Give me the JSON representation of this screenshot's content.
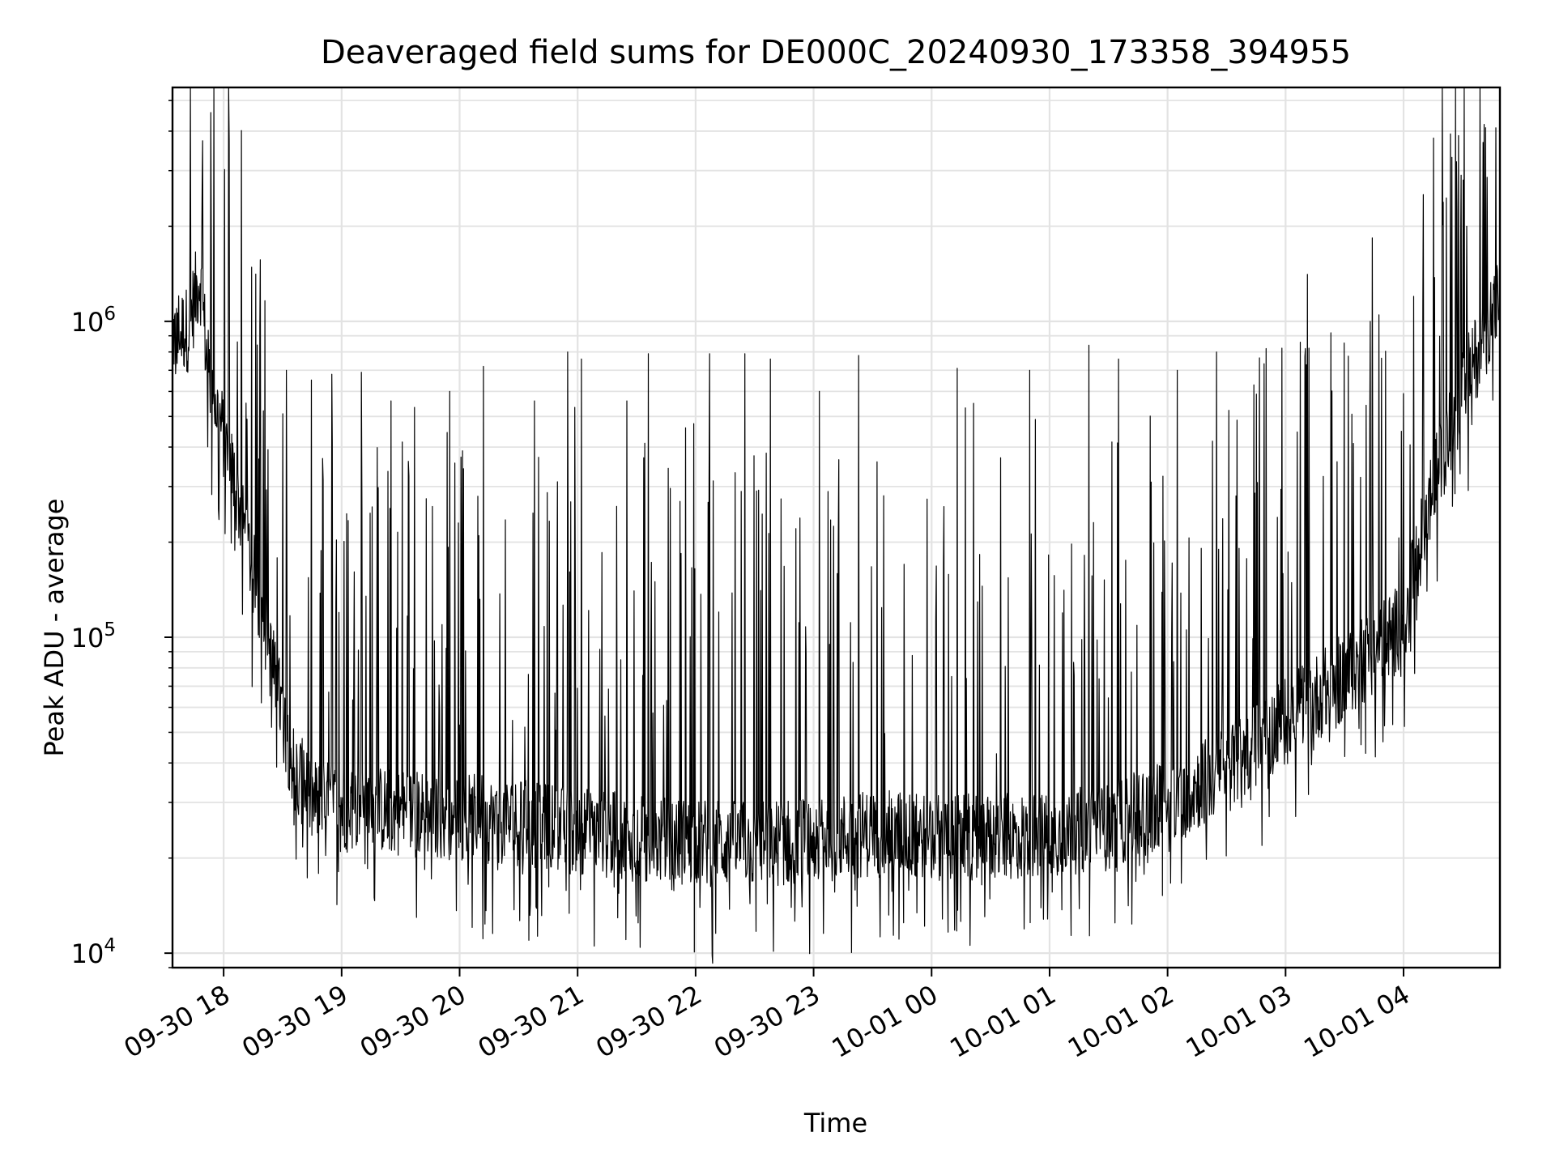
{
  "chart_data": {
    "type": "line",
    "title": "Deaveraged field sums for DE000C_20240930_173358_394955",
    "xlabel": "Time",
    "ylabel": "Peak ADU - average",
    "yscale": "log",
    "ylim": [
      9000,
      5500000
    ],
    "xlim": [
      "2024-09-30 17:34",
      "2024-10-01 04:49"
    ],
    "grid": true,
    "legend": "none",
    "line_color": "#000000",
    "x_ticks": [
      {
        "t": "2024-09-30 18:00",
        "label": "09-30 18"
      },
      {
        "t": "2024-09-30 19:00",
        "label": "09-30 19"
      },
      {
        "t": "2024-09-30 20:00",
        "label": "09-30 20"
      },
      {
        "t": "2024-09-30 21:00",
        "label": "09-30 21"
      },
      {
        "t": "2024-09-30 22:00",
        "label": "09-30 22"
      },
      {
        "t": "2024-09-30 23:00",
        "label": "09-30 23"
      },
      {
        "t": "2024-10-01 00:00",
        "label": "10-01 00"
      },
      {
        "t": "2024-10-01 01:00",
        "label": "10-01 01"
      },
      {
        "t": "2024-10-01 02:00",
        "label": "10-01 02"
      },
      {
        "t": "2024-10-01 03:00",
        "label": "10-01 03"
      },
      {
        "t": "2024-10-01 04:00",
        "label": "10-01 04"
      }
    ],
    "y_ticks": [
      {
        "v": 10000,
        "base": "10",
        "exp": "4"
      },
      {
        "v": 100000,
        "base": "10",
        "exp": "5"
      },
      {
        "v": 1000000,
        "base": "10",
        "exp": "6"
      }
    ],
    "series": [
      {
        "baseline": [
          {
            "t": "2024-09-30 17:34",
            "v": 900000
          },
          {
            "t": "2024-09-30 17:42",
            "v": 950000
          },
          {
            "t": "2024-09-30 17:48",
            "v": 1400000
          },
          {
            "t": "2024-09-30 17:52",
            "v": 700000
          },
          {
            "t": "2024-09-30 18:05",
            "v": 320000
          },
          {
            "t": "2024-09-30 18:15",
            "v": 160000
          },
          {
            "t": "2024-09-30 18:25",
            "v": 80000
          },
          {
            "t": "2024-09-30 18:35",
            "v": 40000
          },
          {
            "t": "2024-09-30 18:45",
            "v": 30000
          },
          {
            "t": "2024-09-30 19:30",
            "v": 28000
          },
          {
            "t": "2024-09-30 20:30",
            "v": 26000
          },
          {
            "t": "2024-09-30 21:30",
            "v": 23000
          },
          {
            "t": "2024-09-30 22:30",
            "v": 22000
          },
          {
            "t": "2024-09-30 23:30",
            "v": 24000
          },
          {
            "t": "2024-10-01 00:30",
            "v": 23000
          },
          {
            "t": "2024-10-01 01:30",
            "v": 25000
          },
          {
            "t": "2024-10-01 02:00",
            "v": 30000
          },
          {
            "t": "2024-10-01 02:30",
            "v": 38000
          },
          {
            "t": "2024-10-01 03:00",
            "v": 55000
          },
          {
            "t": "2024-10-01 03:30",
            "v": 75000
          },
          {
            "t": "2024-10-01 04:00",
            "v": 110000
          },
          {
            "t": "2024-10-01 04:15",
            "v": 300000
          },
          {
            "t": "2024-10-01 04:30",
            "v": 600000
          },
          {
            "t": "2024-10-01 04:49",
            "v": 1200000
          }
        ],
        "peaks": [
          {
            "t": "2024-09-30 17:49",
            "v": 2700000
          },
          {
            "t": "2024-09-30 18:32",
            "v": 700000
          },
          {
            "t": "2024-09-30 18:55",
            "v": 680000
          },
          {
            "t": "2024-09-30 19:10",
            "v": 690000
          },
          {
            "t": "2024-09-30 19:25",
            "v": 560000
          },
          {
            "t": "2024-09-30 19:55",
            "v": 600000
          },
          {
            "t": "2024-09-30 20:12",
            "v": 720000
          },
          {
            "t": "2024-09-30 20:38",
            "v": 560000
          },
          {
            "t": "2024-09-30 20:55",
            "v": 800000
          },
          {
            "t": "2024-09-30 21:02",
            "v": 760000
          },
          {
            "t": "2024-09-30 21:25",
            "v": 560000
          },
          {
            "t": "2024-09-30 21:36",
            "v": 790000
          },
          {
            "t": "2024-09-30 21:55",
            "v": 460000
          },
          {
            "t": "2024-09-30 22:07",
            "v": 790000
          },
          {
            "t": "2024-09-30 22:25",
            "v": 790000
          },
          {
            "t": "2024-09-30 22:38",
            "v": 760000
          },
          {
            "t": "2024-09-30 23:03",
            "v": 600000
          },
          {
            "t": "2024-09-30 23:23",
            "v": 780000
          },
          {
            "t": "2024-10-01 00:13",
            "v": 710000
          },
          {
            "t": "2024-10-01 00:50",
            "v": 700000
          },
          {
            "t": "2024-10-01 01:20",
            "v": 840000
          },
          {
            "t": "2024-10-01 01:35",
            "v": 760000
          },
          {
            "t": "2024-10-01 02:05",
            "v": 700000
          },
          {
            "t": "2024-10-01 02:25",
            "v": 800000
          },
          {
            "t": "2024-10-01 02:50",
            "v": 820000
          },
          {
            "t": "2024-10-01 03:10",
            "v": 820000
          },
          {
            "t": "2024-10-01 03:23",
            "v": 920000
          },
          {
            "t": "2024-10-01 03:43",
            "v": 1000000
          },
          {
            "t": "2024-10-01 04:05",
            "v": 1200000
          },
          {
            "t": "2024-10-01 04:32",
            "v": 2000000
          },
          {
            "t": "2024-10-01 04:47",
            "v": 4100000
          }
        ]
      }
    ]
  }
}
